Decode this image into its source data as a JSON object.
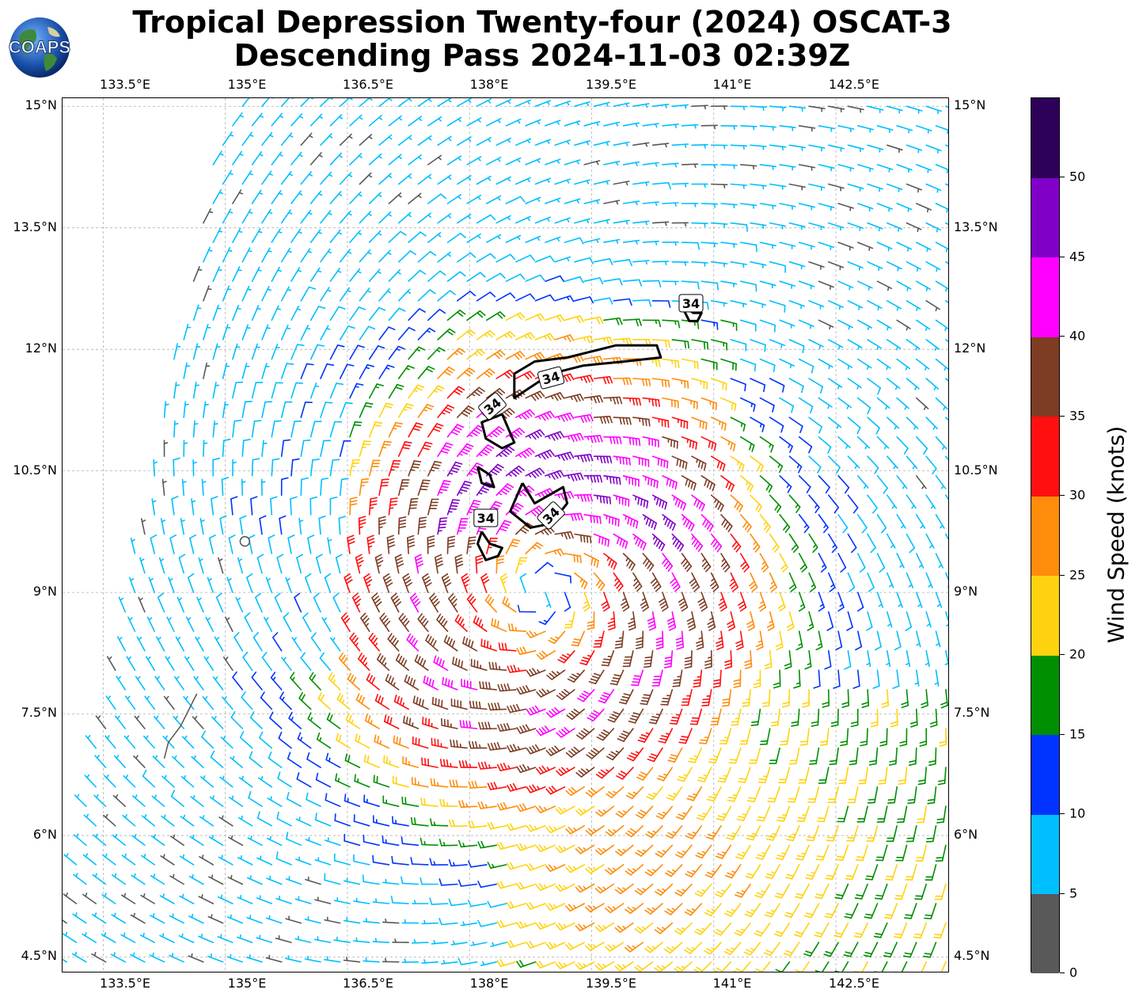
{
  "title_line1": "Tropical Depression Twenty-four (2024) OSCAT-3",
  "title_line2": "Descending Pass 2024-11-03 02:39Z",
  "logo_text": "COAPS",
  "map": {
    "lon_labels": [
      "133.5°E",
      "135°E",
      "136.5°E",
      "138°E",
      "139.5°E",
      "141°E",
      "142.5°E"
    ],
    "lat_labels": [
      "15°N",
      "13.5°N",
      "12°N",
      "10.5°N",
      "9°N",
      "7.5°N",
      "6°N",
      "4.5°N"
    ],
    "contour_labels": [
      "34",
      "34",
      "34",
      "34",
      "34"
    ],
    "gridlines": true,
    "storm_center_marker": "circle"
  },
  "colorbar": {
    "title": "Wind Speed (knots)",
    "tick_labels": [
      "0",
      "5",
      "10",
      "15",
      "20",
      "25",
      "30",
      "35",
      "40",
      "45",
      "50"
    ],
    "colors": [
      "#595959",
      "#00bfff",
      "#0033ff",
      "#008f00",
      "#ffd20f",
      "#ff8c0a",
      "#ff0f0f",
      "#7d3c23",
      "#ff00ff",
      "#8000c8",
      "#2d005a"
    ]
  },
  "chart_data": {
    "type": "wind_barb_map",
    "extent_lon": [
      133,
      143.9
    ],
    "extent_lat": [
      4.3,
      15.1
    ],
    "center_lon": 138.9,
    "center_lat": 9.0,
    "contour_value_knots": 34,
    "speed_bins_knots": [
      0,
      5,
      10,
      15,
      20,
      25,
      30,
      35,
      40,
      45,
      50,
      55
    ]
  }
}
